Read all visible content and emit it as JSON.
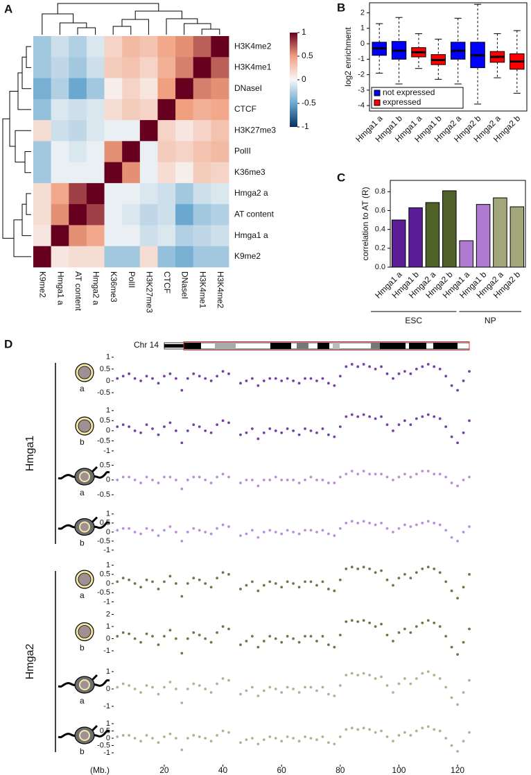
{
  "chart_data": [
    {
      "type": "heatmap",
      "panel": "A",
      "rows": [
        "H3K4me2",
        "H3K4me1",
        "DNaseI",
        "CTCF",
        "H3K27me3",
        "PolII",
        "K36me3",
        "Hmga2 a",
        "AT content",
        "Hmga1 a",
        "K9me2"
      ],
      "columns": [
        "K9me2",
        "Hmga1 a",
        "AT content",
        "Hmga2 a",
        "K36me3",
        "PolII",
        "H3K27me3",
        "CTCF",
        "DNaseI",
        "H3K4me1",
        "H3K4me2"
      ],
      "values": [
        [
          -0.3,
          -0.15,
          -0.25,
          -0.1,
          0.2,
          0.35,
          0.3,
          0.45,
          0.55,
          0.7,
          1
        ],
        [
          -0.3,
          -0.2,
          -0.3,
          -0.15,
          0.25,
          0.3,
          0.2,
          0.4,
          0.6,
          1,
          0.7
        ],
        [
          -0.45,
          -0.25,
          -0.5,
          -0.3,
          0.05,
          0.2,
          0.1,
          0.5,
          1,
          0.6,
          0.55
        ],
        [
          -0.35,
          -0.1,
          -0.15,
          -0.1,
          0.15,
          0.25,
          0.2,
          1,
          0.5,
          0.4,
          0.45
        ],
        [
          0.15,
          -0.15,
          -0.2,
          -0.1,
          -0.05,
          -0.05,
          1,
          0.2,
          0.1,
          0.2,
          0.3
        ],
        [
          -0.3,
          -0.05,
          -0.1,
          -0.05,
          0.55,
          1,
          -0.05,
          0.25,
          0.2,
          0.3,
          0.35
        ],
        [
          -0.3,
          -0.05,
          -0.05,
          -0.05,
          1,
          0.55,
          -0.05,
          0.15,
          0.05,
          0.25,
          0.2
        ],
        [
          0.15,
          0.45,
          0.8,
          1,
          -0.05,
          -0.05,
          -0.1,
          -0.15,
          -0.3,
          -0.15,
          -0.1
        ],
        [
          0.15,
          0.55,
          1,
          0.8,
          -0.05,
          -0.1,
          -0.2,
          -0.15,
          -0.5,
          -0.3,
          -0.25
        ],
        [
          0.1,
          1,
          0.55,
          0.45,
          -0.05,
          -0.05,
          -0.15,
          -0.1,
          -0.25,
          -0.2,
          -0.15
        ],
        [
          1,
          0.1,
          0.15,
          0.15,
          -0.3,
          -0.3,
          0.15,
          -0.35,
          -0.45,
          -0.3,
          -0.3
        ]
      ],
      "zlim": [
        -1,
        1
      ],
      "zticks": [
        1,
        0.5,
        0,
        -0.5,
        -1
      ],
      "colors": [
        "#053061",
        "#6aa8d0",
        "#f7f7f7",
        "#f1a07f",
        "#67001f"
      ]
    },
    {
      "type": "box",
      "panel": "B",
      "ylabel": "log2 enrichment",
      "categories": [
        "Hmga1 a",
        "Hmga1 b",
        "Hmga1 a",
        "Hmga1 b",
        "Hmga2 a",
        "Hmga2 b",
        "Hmga2 a",
        "Hmga2 b"
      ],
      "ylim": [
        -4.35,
        2.65
      ],
      "yticks": [
        -4,
        -3,
        -2,
        -1,
        0,
        1,
        2
      ],
      "legend": "lower left",
      "series": [
        {
          "name": "not expressed",
          "color": "#0000ff",
          "values": [
            {
              "min": -1.9,
              "q1": -0.75,
              "median": -0.3,
              "q3": 0.1,
              "max": 1.3
            },
            {
              "min": -2.6,
              "q1": -1.0,
              "median": -0.45,
              "q3": 0.15,
              "max": 1.7
            },
            null,
            null,
            {
              "min": -2.6,
              "q1": -1.0,
              "median": -0.45,
              "q3": 0.1,
              "max": 1.65
            },
            {
              "min": -3.9,
              "q1": -1.55,
              "median": -0.75,
              "q3": 0.1,
              "max": 2.55
            },
            null,
            null
          ]
        },
        {
          "name": "expressed",
          "color": "#ff0000",
          "values": [
            null,
            null,
            {
              "min": -1.6,
              "q1": -0.85,
              "median": -0.55,
              "q3": -0.25,
              "max": 0.65
            },
            {
              "min": -2.3,
              "q1": -1.35,
              "median": -1.05,
              "q3": -0.7,
              "max": 0.3
            },
            null,
            null,
            {
              "min": -2.2,
              "q1": -1.2,
              "median": -0.85,
              "q3": -0.5,
              "max": 0.65
            },
            {
              "min": -3.2,
              "q1": -1.65,
              "median": -1.15,
              "q3": -0.65,
              "max": 0.85
            }
          ]
        }
      ]
    },
    {
      "type": "bar",
      "panel": "C",
      "ylabel": "correlation to AT (R)",
      "categories": [
        "Hmga1 a",
        "Hmga1 b",
        "Hmga2 a",
        "Hmga2 b",
        "Hmga1 a",
        "Hmga1 b",
        "Hmga2 a",
        "Hmga2 b"
      ],
      "values": [
        0.5,
        0.63,
        0.685,
        0.81,
        0.28,
        0.665,
        0.735,
        0.64
      ],
      "colors": [
        "#5b1e96",
        "#5b1e96",
        "#4f6128",
        "#4f6128",
        "#b07ad2",
        "#b07ad2",
        "#a3a57a",
        "#a3a57a"
      ],
      "ylim": [
        0,
        0.92
      ],
      "yticks": [
        {
          "value": 0,
          "label": "0.0"
        },
        0.2,
        0.4,
        0.6,
        0.8
      ],
      "groups": [
        "ESC",
        "NP"
      ]
    },
    {
      "type": "tracks",
      "panel": "D",
      "chromosome": "Chr 14",
      "xlabel": "(Mb.)",
      "xlim": [
        3,
        124
      ],
      "xticks": [
        20,
        40,
        60,
        80,
        100,
        120
      ],
      "groups": [
        "Hmga1",
        "Hmga2"
      ],
      "x": [
        4,
        6,
        8,
        10,
        12,
        14,
        16,
        18,
        20,
        22,
        24,
        26,
        28,
        30,
        32,
        34,
        36,
        38,
        40,
        42,
        44,
        46,
        48,
        50,
        52,
        54,
        56,
        58,
        60,
        62,
        64,
        66,
        68,
        70,
        72,
        74,
        76,
        78,
        80,
        82,
        84,
        86,
        88,
        90,
        92,
        94,
        96,
        98,
        100,
        102,
        104,
        106,
        108,
        110,
        112,
        114,
        116,
        118,
        120,
        122,
        124
      ],
      "tracks": [
        {
          "label": "a",
          "icon": "round",
          "color": "#5b1e96",
          "ylim": [
            -0.97,
            1.2
          ],
          "yticks": [
            1,
            0.5,
            0,
            -0.5
          ],
          "values": [
            0.1,
            0.2,
            0.3,
            0.1,
            0.0,
            0.2,
            0.1,
            -0.1,
            0.2,
            0.3,
            0.1,
            -0.4,
            0.1,
            0.3,
            0.2,
            0.1,
            0.0,
            0.2,
            0.4,
            0.3,
            null,
            -0.1,
            0.0,
            0.1,
            -0.2,
            0.0,
            0.1,
            0.1,
            0.0,
            0.1,
            0.0,
            -0.1,
            0.1,
            0.1,
            0.0,
            0.1,
            -0.1,
            -0.2,
            0.2,
            0.6,
            0.7,
            0.6,
            0.7,
            0.6,
            0.5,
            0.6,
            0.3,
            0.1,
            0.3,
            0.4,
            0.3,
            0.5,
            0.6,
            0.7,
            0.6,
            0.5,
            0.2,
            -0.2,
            -0.4,
            0.0,
            0.4
          ]
        },
        {
          "label": "b",
          "icon": "round",
          "color": "#5b1e96",
          "ylim": [
            -1.28,
            1.2
          ],
          "yticks": [
            1,
            0.5,
            0,
            -0.5,
            -1
          ],
          "values": [
            0.2,
            0.3,
            0.2,
            0.0,
            -0.1,
            0.3,
            0.1,
            -0.2,
            0.2,
            0.4,
            0.0,
            -0.6,
            0.0,
            0.3,
            0.2,
            0.0,
            -0.1,
            0.3,
            0.5,
            0.4,
            null,
            -0.2,
            -0.1,
            0.1,
            -0.4,
            -0.1,
            0.1,
            0.0,
            -0.1,
            0.1,
            0.0,
            -0.2,
            0.1,
            0.0,
            -0.1,
            0.1,
            -0.2,
            -0.3,
            0.2,
            0.7,
            0.8,
            0.7,
            0.8,
            0.7,
            0.6,
            0.7,
            0.3,
            0.0,
            0.3,
            0.5,
            0.3,
            0.6,
            0.7,
            0.8,
            0.7,
            0.6,
            0.2,
            -0.3,
            -0.6,
            -0.1,
            0.5
          ]
        },
        {
          "label": "a",
          "icon": "neuron",
          "color": "#b07ad2",
          "ylim": [
            -0.85,
            0.7
          ],
          "yticks": [
            0.5,
            0,
            -0.5
          ],
          "values": [
            0.0,
            0.1,
            0.1,
            0.0,
            -0.1,
            0.1,
            0.0,
            -0.1,
            0.1,
            0.1,
            0.0,
            -0.3,
            0.0,
            0.1,
            0.1,
            0.0,
            -0.1,
            0.1,
            0.2,
            0.1,
            null,
            -0.1,
            0.0,
            0.0,
            -0.2,
            0.0,
            0.0,
            0.1,
            0.0,
            0.0,
            0.0,
            -0.1,
            0.0,
            0.1,
            0.0,
            0.0,
            -0.1,
            -0.1,
            0.1,
            0.2,
            0.3,
            0.2,
            0.3,
            0.2,
            0.2,
            0.2,
            0.1,
            0.0,
            0.1,
            0.2,
            0.1,
            0.2,
            0.3,
            0.3,
            0.2,
            0.2,
            0.1,
            -0.1,
            -0.2,
            0.0,
            0.1
          ]
        },
        {
          "label": "b",
          "icon": "neuron",
          "color": "#b07ad2",
          "ylim": [
            -1.35,
            1.3
          ],
          "yticks": [
            1,
            0.5,
            0,
            -0.5,
            -1
          ],
          "values": [
            0.1,
            0.2,
            0.2,
            0.0,
            -0.1,
            0.2,
            0.1,
            -0.2,
            0.1,
            0.3,
            0.0,
            -0.5,
            0.0,
            0.2,
            0.1,
            0.0,
            -0.1,
            0.2,
            0.4,
            0.3,
            null,
            -0.2,
            -0.1,
            0.1,
            -0.3,
            0.0,
            0.1,
            0.0,
            -0.1,
            0.1,
            0.0,
            -0.1,
            0.1,
            0.1,
            0.0,
            0.1,
            -0.1,
            -0.2,
            0.2,
            0.5,
            0.6,
            0.5,
            0.6,
            0.5,
            0.4,
            0.5,
            0.2,
            0.0,
            0.2,
            0.4,
            0.3,
            0.4,
            0.5,
            0.6,
            0.5,
            0.4,
            0.1,
            -0.3,
            -0.5,
            0.0,
            0.3
          ]
        },
        {
          "label": "a",
          "icon": "round",
          "color": "#4f6128",
          "ylim": [
            -1.4,
            1.25
          ],
          "yticks": [
            1,
            0.5,
            0,
            -0.5,
            -1
          ],
          "values": [
            0.1,
            0.3,
            0.2,
            0.0,
            -0.2,
            0.2,
            0.1,
            -0.3,
            0.1,
            0.4,
            0.0,
            -0.7,
            0.0,
            0.3,
            0.2,
            0.0,
            -0.2,
            0.3,
            0.6,
            0.5,
            null,
            -0.3,
            -0.1,
            0.1,
            -0.4,
            -0.1,
            0.1,
            0.0,
            -0.2,
            0.1,
            0.0,
            -0.2,
            0.1,
            0.1,
            -0.1,
            0.1,
            -0.3,
            -0.4,
            0.2,
            0.8,
            0.9,
            0.8,
            0.9,
            0.8,
            0.6,
            0.7,
            0.2,
            -0.1,
            0.3,
            0.5,
            0.3,
            0.6,
            0.8,
            0.9,
            0.8,
            0.6,
            0.1,
            -0.4,
            -0.8,
            -0.2,
            0.5
          ]
        },
        {
          "label": "b",
          "icon": "round",
          "color": "#4f6128",
          "ylim": [
            -1.97,
            2.2
          ],
          "yticks": [
            2,
            1,
            0,
            -1
          ],
          "values": [
            0.2,
            0.5,
            0.4,
            0.0,
            -0.3,
            0.4,
            0.2,
            -0.5,
            0.2,
            0.7,
            0.0,
            -1.2,
            0.0,
            0.5,
            0.3,
            0.0,
            -0.3,
            0.5,
            1.0,
            0.8,
            null,
            -0.5,
            -0.2,
            0.2,
            -0.7,
            -0.2,
            0.2,
            0.0,
            -0.3,
            0.2,
            0.0,
            -0.3,
            0.2,
            0.2,
            -0.2,
            0.2,
            -0.5,
            -0.7,
            0.3,
            1.4,
            1.5,
            1.4,
            1.5,
            1.3,
            1.0,
            1.2,
            0.3,
            -0.2,
            0.5,
            0.8,
            0.5,
            1.0,
            1.3,
            1.5,
            1.3,
            1.0,
            0.2,
            -0.7,
            -1.3,
            -0.3,
            0.8
          ]
        },
        {
          "label": "a",
          "icon": "neuron",
          "color": "#a3a57a",
          "ylim": [
            -1.48,
            1.32
          ],
          "yticks": [
            1,
            0,
            -1
          ],
          "values": [
            0.1,
            0.3,
            0.2,
            0.0,
            -0.2,
            0.2,
            0.1,
            -0.3,
            0.1,
            0.4,
            0.0,
            -0.8,
            0.0,
            0.3,
            0.2,
            0.0,
            -0.2,
            0.3,
            0.6,
            0.5,
            null,
            -0.3,
            -0.1,
            0.1,
            -0.4,
            -0.1,
            0.1,
            0.0,
            -0.2,
            0.1,
            0.0,
            -0.2,
            0.1,
            0.1,
            -0.1,
            0.1,
            -0.3,
            -0.4,
            0.2,
            0.8,
            0.9,
            0.8,
            0.9,
            0.8,
            0.6,
            0.7,
            0.2,
            -0.2,
            0.3,
            0.6,
            0.3,
            0.6,
            0.9,
            1.0,
            0.8,
            0.6,
            0.1,
            -0.5,
            -0.9,
            -0.2,
            0.5
          ]
        },
        {
          "label": "b",
          "icon": "neuron",
          "color": "#a3a57a",
          "ylim": [
            -1.81,
            1.43
          ],
          "yticks": [
            1,
            0.5,
            0,
            -0.5,
            -1
          ],
          "values": [
            0.1,
            0.2,
            0.2,
            0.0,
            -0.2,
            0.2,
            0.0,
            -0.3,
            0.1,
            0.3,
            0.0,
            -0.8,
            0.0,
            0.2,
            0.1,
            0.0,
            -0.2,
            0.2,
            0.5,
            0.4,
            null,
            -0.3,
            -0.1,
            0.0,
            -0.4,
            -0.1,
            0.1,
            0.0,
            -0.2,
            0.1,
            0.0,
            -0.2,
            0.1,
            0.0,
            -0.1,
            0.1,
            -0.3,
            -0.4,
            0.1,
            0.6,
            0.7,
            0.6,
            0.7,
            0.6,
            0.4,
            0.5,
            0.1,
            -0.2,
            0.2,
            0.4,
            0.2,
            0.5,
            0.7,
            0.8,
            0.6,
            0.5,
            0.0,
            -0.5,
            -0.9,
            -0.2,
            0.4
          ]
        }
      ]
    }
  ]
}
